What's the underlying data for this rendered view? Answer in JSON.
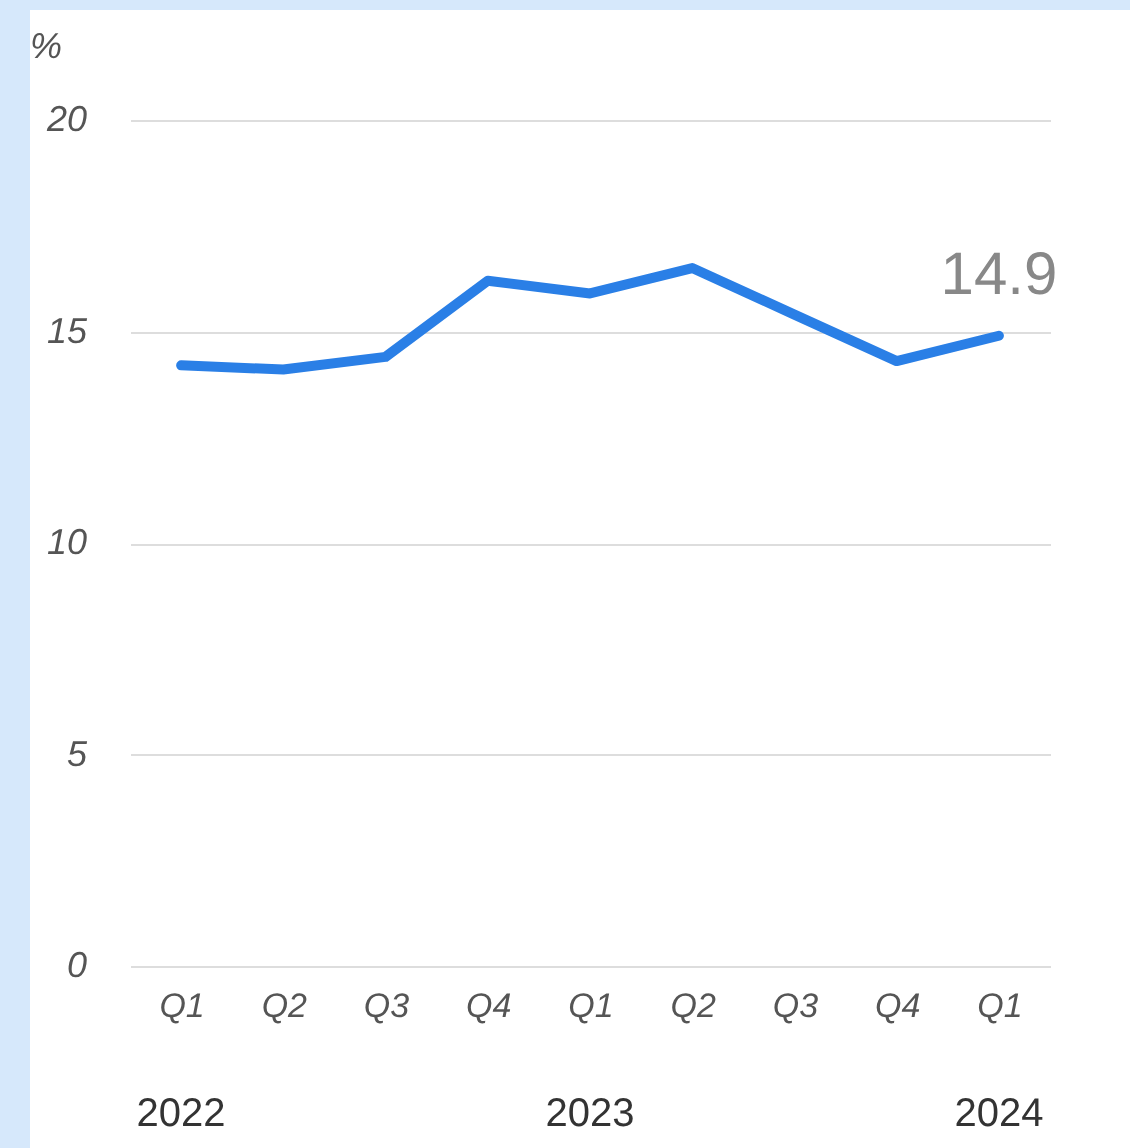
{
  "chart_data": {
    "type": "line",
    "ylabel": "%",
    "categories": [
      "Q1",
      "Q2",
      "Q3",
      "Q4",
      "Q1",
      "Q2",
      "Q3",
      "Q4",
      "Q1"
    ],
    "series": [
      {
        "color": "#2a7fe6",
        "values": [
          14.2,
          14.1,
          14.4,
          16.2,
          15.9,
          16.5,
          15.4,
          14.3,
          14.9
        ],
        "value_labels": [
          null,
          null,
          null,
          null,
          null,
          null,
          null,
          null,
          "14.9"
        ]
      }
    ],
    "ylim": [
      0,
      20
    ],
    "yticks": [
      0,
      5,
      10,
      15,
      20
    ],
    "grid": "y",
    "marker": "none",
    "line_style": "solid",
    "annotations": [
      "2022",
      "2023",
      "2024"
    ]
  }
}
